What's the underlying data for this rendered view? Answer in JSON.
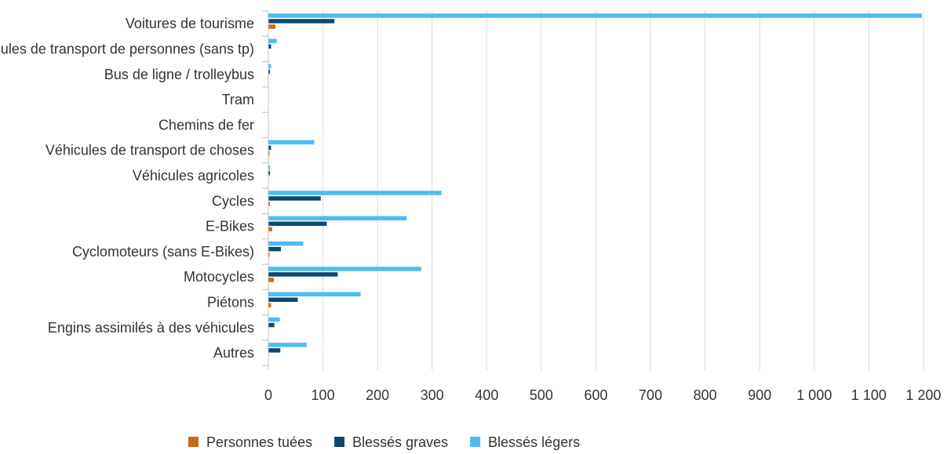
{
  "chart_data": {
    "type": "bar",
    "orientation": "horizontal",
    "categories": [
      "Voitures de tourisme",
      "Véhicules de transport de personnes (sans tp)",
      "Bus de ligne / trolleybus",
      "Tram",
      "Chemins de fer",
      "Véhicules de transport de choses",
      "Véhicules agricoles",
      "Cycles",
      "E-Bikes",
      "Cyclomoteurs (sans E-Bikes)",
      "Motocycles",
      "Piétons",
      "Engins assimilés à des véhicules",
      "Autres"
    ],
    "series": [
      {
        "name": "Blessés légers",
        "color": "#4dbcf2",
        "values": [
          1197,
          15,
          5,
          0,
          0,
          84,
          3,
          317,
          253,
          64,
          280,
          169,
          21,
          70
        ]
      },
      {
        "name": "Blessés graves",
        "color": "#0b4a6e",
        "values": [
          121,
          5,
          3,
          0,
          0,
          5,
          3,
          96,
          107,
          23,
          127,
          54,
          11,
          22
        ]
      },
      {
        "name": "Personnes tuées",
        "color": "#c86a12",
        "values": [
          13,
          0,
          0,
          0,
          0,
          2,
          0,
          3,
          7,
          2,
          10,
          5,
          0,
          0
        ]
      }
    ],
    "legend_order": [
      "Personnes tuées",
      "Blessés graves",
      "Blessés légers"
    ],
    "xlim": [
      0,
      1200
    ],
    "xticks": [
      0,
      100,
      200,
      300,
      400,
      500,
      600,
      700,
      800,
      900,
      1000,
      1100,
      1200
    ],
    "xtick_labels": [
      "0",
      "100",
      "200",
      "300",
      "400",
      "500",
      "600",
      "700",
      "800",
      "900",
      "1 000",
      "1 100",
      "1 200"
    ],
    "grid": "vertical",
    "legend_position": "bottom"
  }
}
